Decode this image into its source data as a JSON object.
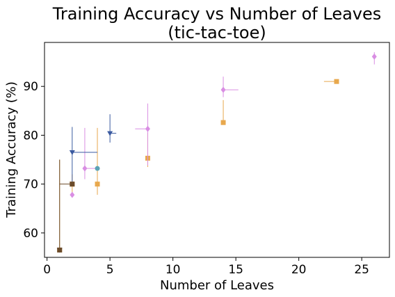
{
  "chart_data": {
    "type": "scatter",
    "title": "Training Accuracy vs Number of Leaves",
    "subtitle": "(tic-tac-toe)",
    "xlabel": "Number of Leaves",
    "ylabel": "Training Accuracy (%)",
    "xlim": [
      -0.2,
      27.2
    ],
    "ylim": [
      55,
      99
    ],
    "x_ticks": [
      "0",
      "5",
      "10",
      "15",
      "20",
      "25"
    ],
    "y_ticks": [
      "60",
      "70",
      "80",
      "90"
    ],
    "grid": false,
    "legend": "none",
    "series": [
      {
        "color": "#e8a84d",
        "marker": "square",
        "points": [
          {
            "x": 1,
            "y": 56.5,
            "xerr": [
              0,
              0
            ],
            "yerr": [
              56.5,
              75.0
            ]
          },
          {
            "x": 2,
            "y": 70.0,
            "xerr": [
              0,
              0
            ],
            "yerr": [
              68.0,
              72.0
            ]
          },
          {
            "x": 4,
            "y": 70.0,
            "xerr": [
              0,
              0
            ],
            "yerr": [
              67.8,
              81.5
            ]
          },
          {
            "x": 8,
            "y": 75.3,
            "xerr": [
              0,
              0
            ],
            "yerr": [
              73.5,
              80.5
            ]
          },
          {
            "x": 14,
            "y": 82.6,
            "xerr": [
              0,
              0
            ],
            "yerr": [
              82.6,
              87.2
            ]
          },
          {
            "x": 23,
            "y": 91.0,
            "xerr": [
              22,
              23
            ],
            "yerr": [
              91.0,
              91.0
            ]
          }
        ]
      },
      {
        "color": "#d98ee3",
        "marker": "diamond",
        "points": [
          {
            "x": 2,
            "y": 67.8,
            "xerr": [
              0,
              0
            ],
            "yerr": [
              67.8,
              67.8
            ]
          },
          {
            "x": 3,
            "y": 73.2,
            "xerr": [
              3,
              4
            ],
            "yerr": [
              71.0,
              81.5
            ]
          },
          {
            "x": 8,
            "y": 81.3,
            "xerr": [
              7,
              8
            ],
            "yerr": [
              73.8,
              86.5
            ]
          },
          {
            "x": 14,
            "y": 89.3,
            "xerr": [
              14,
              15.2
            ],
            "yerr": [
              87.8,
              92.0
            ]
          },
          {
            "x": 26,
            "y": 96.1,
            "xerr": [
              0,
              0
            ],
            "yerr": [
              94.5,
              97.0
            ]
          }
        ]
      },
      {
        "color": "#3a5aa0",
        "marker": "triangle-down",
        "points": [
          {
            "x": 1,
            "y": 56.5,
            "xerr": [
              0,
              0
            ],
            "yerr": [
              56.5,
              56.5
            ]
          },
          {
            "x": 2,
            "y": 76.5,
            "xerr": [
              2,
              4
            ],
            "yerr": [
              70.0,
              81.7
            ]
          },
          {
            "x": 5,
            "y": 80.4,
            "xerr": [
              5,
              5.5
            ],
            "yerr": [
              78.5,
              84.3
            ]
          }
        ]
      },
      {
        "color": "#5ba3b5",
        "marker": "circle",
        "points": [
          {
            "x": 4,
            "y": 73.2,
            "xerr": [
              0,
              0
            ],
            "yerr": [
              73.2,
              73.2
            ]
          }
        ]
      },
      {
        "color": "#6b4b2a",
        "marker": "square",
        "points": [
          {
            "x": 1,
            "y": 56.5,
            "xerr": [
              0,
              0
            ],
            "yerr": [
              56.5,
              75.0
            ]
          },
          {
            "x": 2,
            "y": 70.0,
            "xerr": [
              1,
              2
            ],
            "yerr": [
              70.0,
              70.0
            ]
          }
        ]
      }
    ]
  }
}
